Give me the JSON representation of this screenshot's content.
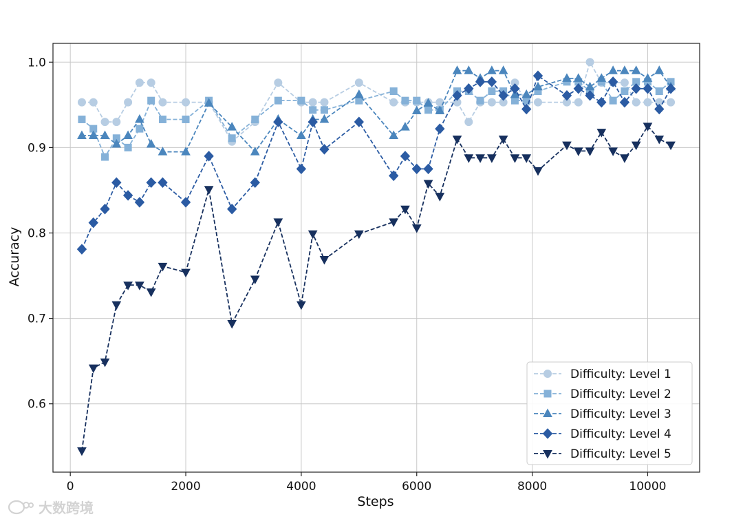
{
  "chart_data": {
    "type": "line",
    "xlabel": "Steps",
    "ylabel": "Accuracy",
    "xlim": [
      -300,
      10900
    ],
    "ylim": [
      0.52,
      1.022
    ],
    "xticks": [
      0,
      2000,
      4000,
      6000,
      8000,
      10000
    ],
    "xtick_labels": [
      "0",
      "2000",
      "4000",
      "6000",
      "8000",
      "10000"
    ],
    "yticks": [
      0.6,
      0.7,
      0.8,
      0.9,
      1.0
    ],
    "ytick_labels": [
      "0.6",
      "0.7",
      "0.8",
      "0.9",
      "1.0"
    ],
    "grid": true,
    "legend_position": "lower-right",
    "series": [
      {
        "name": "Difficulty: Level 1",
        "color": "#b7cde3",
        "marker": "circle",
        "x": [
          200,
          400,
          600,
          800,
          1000,
          1200,
          1400,
          1600,
          2000,
          2400,
          2800,
          3200,
          3600,
          4000,
          4200,
          4400,
          5000,
          5600,
          5800,
          6000,
          6200,
          6400,
          6700,
          6900,
          7100,
          7300,
          7500,
          7700,
          7900,
          8100,
          8600,
          8800,
          9000,
          9200,
          9400,
          9600,
          9800,
          10000,
          10200,
          10400
        ],
        "y": [
          0.953,
          0.953,
          0.93,
          0.93,
          0.953,
          0.976,
          0.976,
          0.953,
          0.953,
          0.953,
          0.907,
          0.93,
          0.976,
          0.953,
          0.953,
          0.953,
          0.976,
          0.953,
          0.953,
          0.953,
          0.953,
          0.953,
          0.953,
          0.93,
          0.953,
          0.953,
          0.953,
          0.976,
          0.953,
          0.953,
          0.953,
          0.953,
          1.0,
          0.976,
          0.976,
          0.976,
          0.953,
          0.953,
          0.953,
          0.953
        ]
      },
      {
        "name": "Difficulty: Level 2",
        "color": "#85b1d8",
        "marker": "square",
        "x": [
          200,
          400,
          600,
          800,
          1000,
          1200,
          1400,
          1600,
          2000,
          2400,
          2800,
          3200,
          3600,
          4000,
          4200,
          4400,
          5000,
          5600,
          5800,
          6000,
          6200,
          6400,
          6700,
          6900,
          7100,
          7300,
          7500,
          7700,
          7900,
          8100,
          8600,
          8800,
          9000,
          9200,
          9400,
          9600,
          9800,
          10000,
          10200,
          10400
        ],
        "y": [
          0.933,
          0.922,
          0.889,
          0.911,
          0.9,
          0.922,
          0.955,
          0.933,
          0.933,
          0.955,
          0.911,
          0.933,
          0.955,
          0.955,
          0.944,
          0.944,
          0.955,
          0.966,
          0.955,
          0.955,
          0.944,
          0.944,
          0.966,
          0.966,
          0.955,
          0.966,
          0.966,
          0.955,
          0.955,
          0.966,
          0.977,
          0.977,
          0.966,
          0.977,
          0.955,
          0.966,
          0.977,
          0.977,
          0.966,
          0.977
        ]
      },
      {
        "name": "Difficulty: Level 3",
        "color": "#4b86bd",
        "marker": "triangle-up",
        "x": [
          200,
          400,
          600,
          800,
          1000,
          1200,
          1400,
          1600,
          2000,
          2400,
          2800,
          3200,
          3600,
          4000,
          4200,
          4400,
          5000,
          5600,
          5800,
          6000,
          6200,
          6400,
          6700,
          6900,
          7100,
          7300,
          7500,
          7700,
          7900,
          8100,
          8600,
          8800,
          9000,
          9200,
          9400,
          9600,
          9800,
          10000,
          10200,
          10400
        ],
        "y": [
          0.914,
          0.914,
          0.914,
          0.904,
          0.914,
          0.933,
          0.904,
          0.895,
          0.895,
          0.952,
          0.924,
          0.895,
          0.933,
          0.914,
          0.933,
          0.933,
          0.962,
          0.914,
          0.924,
          0.943,
          0.952,
          0.943,
          0.99,
          0.99,
          0.981,
          0.99,
          0.99,
          0.962,
          0.962,
          0.971,
          0.981,
          0.981,
          0.971,
          0.981,
          0.99,
          0.99,
          0.99,
          0.981,
          0.99,
          0.971
        ]
      },
      {
        "name": "Difficulty: Level 4",
        "color": "#2b5ba3",
        "marker": "diamond",
        "x": [
          200,
          400,
          600,
          800,
          1000,
          1200,
          1400,
          1600,
          2000,
          2400,
          2800,
          3200,
          3600,
          4000,
          4200,
          4400,
          5000,
          5600,
          5800,
          6000,
          6200,
          6400,
          6700,
          6900,
          7100,
          7300,
          7500,
          7700,
          7900,
          8100,
          8600,
          8800,
          9000,
          9200,
          9400,
          9600,
          9800,
          10000,
          10200,
          10400
        ],
        "y": [
          0.781,
          0.812,
          0.828,
          0.859,
          0.844,
          0.836,
          0.859,
          0.859,
          0.836,
          0.89,
          0.828,
          0.859,
          0.93,
          0.875,
          0.93,
          0.898,
          0.93,
          0.867,
          0.89,
          0.875,
          0.875,
          0.922,
          0.961,
          0.969,
          0.977,
          0.977,
          0.961,
          0.969,
          0.945,
          0.984,
          0.961,
          0.969,
          0.961,
          0.953,
          0.977,
          0.953,
          0.969,
          0.969,
          0.945,
          0.969
        ]
      },
      {
        "name": "Difficulty: Level 5",
        "color": "#17305e",
        "marker": "triangle-down",
        "x": [
          200,
          400,
          600,
          800,
          1000,
          1200,
          1400,
          1600,
          2000,
          2400,
          2800,
          3200,
          3600,
          4000,
          4200,
          4400,
          5000,
          5600,
          5800,
          6000,
          6200,
          6400,
          6700,
          6900,
          7100,
          7300,
          7500,
          7700,
          7900,
          8100,
          8600,
          8800,
          9000,
          9200,
          9400,
          9600,
          9800,
          10000,
          10200,
          10400
        ],
        "y": [
          0.545,
          0.642,
          0.649,
          0.716,
          0.739,
          0.739,
          0.731,
          0.761,
          0.754,
          0.851,
          0.694,
          0.746,
          0.813,
          0.716,
          0.799,
          0.769,
          0.799,
          0.813,
          0.828,
          0.806,
          0.858,
          0.843,
          0.91,
          0.888,
          0.888,
          0.888,
          0.91,
          0.888,
          0.888,
          0.873,
          0.903,
          0.896,
          0.896,
          0.918,
          0.896,
          0.888,
          0.903,
          0.925,
          0.91,
          0.903
        ]
      }
    ]
  },
  "watermark": {
    "text": "大数跨境",
    "icon": "wechat-bubble-icon"
  }
}
